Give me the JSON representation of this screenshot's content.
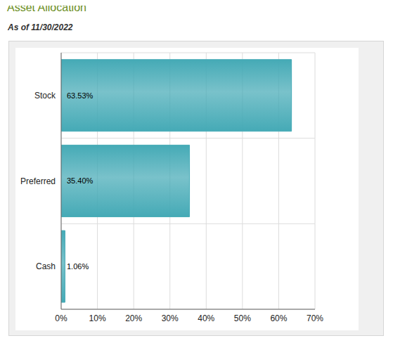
{
  "chart_data": {
    "type": "bar",
    "title": "Asset Allocation",
    "subtitle": "As of 11/30/2022",
    "orientation": "horizontal",
    "categories": [
      "Stock",
      "Preferred",
      "Cash"
    ],
    "values": [
      63.53,
      35.4,
      1.06
    ],
    "value_labels": [
      "63.53%",
      "35.40%",
      "1.06%"
    ],
    "data_labels": true,
    "color": "#45aab6",
    "xlim": [
      0,
      70
    ],
    "xticks": [
      {
        "value": 0,
        "label": "0%"
      },
      {
        "value": 10,
        "label": "10%"
      },
      {
        "value": 20,
        "label": "20%"
      },
      {
        "value": 30,
        "label": "30%"
      },
      {
        "value": 40,
        "label": "40%"
      },
      {
        "value": 50,
        "label": "50%"
      },
      {
        "value": 60,
        "label": "60%"
      },
      {
        "value": 70,
        "label": "70%"
      }
    ],
    "grid": true
  }
}
